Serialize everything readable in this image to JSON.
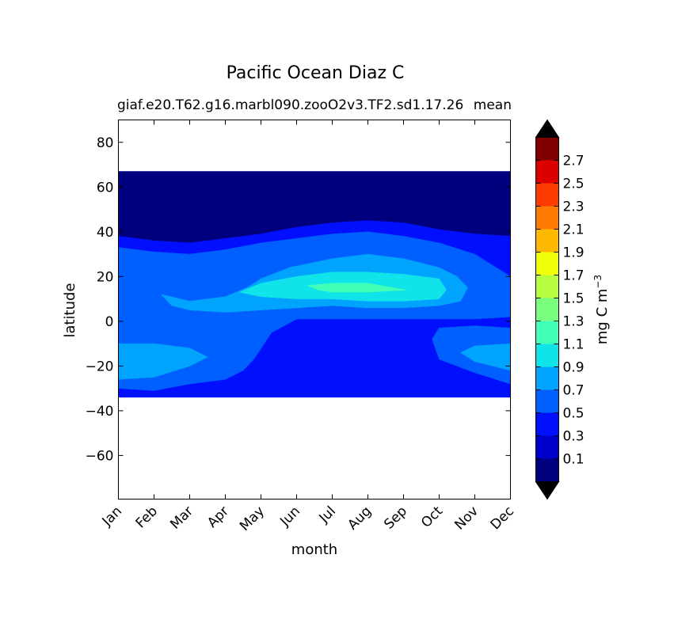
{
  "chart_data": {
    "type": "heatmap",
    "title": "Pacific Ocean Diaz C",
    "subtitle_left": "giaf.e20.T62.g16.marbl090.zooO2v3.TF2.sd1.17.26",
    "subtitle_right": "mean",
    "xlabel": "month",
    "ylabel": "latitude",
    "x_categories": [
      "Jan",
      "Feb",
      "Mar",
      "Apr",
      "May",
      "Jun",
      "Jul",
      "Aug",
      "Sep",
      "Oct",
      "Nov",
      "Dec"
    ],
    "y_ticks": [
      80,
      60,
      40,
      20,
      0,
      -20,
      -40,
      -60
    ],
    "y_tick_labels": [
      "80",
      "60",
      "40",
      "20",
      "0",
      "−20",
      "−40",
      "−60"
    ],
    "ylim": [
      -79.5,
      90
    ],
    "data_lat_range": [
      -34,
      67
    ],
    "colorbar": {
      "label": "mg C m",
      "label_superscript": "−3",
      "levels": [
        0,
        0.2,
        0.4,
        0.6,
        0.8,
        1.0,
        1.2,
        1.4,
        1.6,
        1.8,
        2.0,
        2.2,
        2.4,
        2.6,
        2.8
      ],
      "tick_labels": [
        "0.1",
        "0.3",
        "0.5",
        "0.7",
        "0.9",
        "1.1",
        "1.3",
        "1.5",
        "1.7",
        "1.9",
        "2.1",
        "2.3",
        "2.5",
        "2.7"
      ],
      "colors": [
        "#00007f",
        "#0000cc",
        "#0010ff",
        "#0060ff",
        "#00a4ff",
        "#10e4e8",
        "#40ffb7",
        "#79ff7d",
        "#b7ff40",
        "#efff08",
        "#ffb800",
        "#ff7a00",
        "#ff3b00",
        "#dd0000",
        "#800000"
      ],
      "under_color": "#000000",
      "over_color": "#000000",
      "extend": "both"
    },
    "contours": [
      {
        "level": "0.0-0.2",
        "color": "#00007f",
        "points": [
          [
            1,
            67
          ],
          [
            12,
            67
          ],
          [
            12,
            38
          ],
          [
            11,
            39
          ],
          [
            10,
            41
          ],
          [
            9,
            44
          ],
          [
            8,
            45
          ],
          [
            7,
            44
          ],
          [
            6,
            42
          ],
          [
            5,
            39
          ],
          [
            4,
            37
          ],
          [
            3,
            35
          ],
          [
            2,
            36
          ],
          [
            1,
            38
          ]
        ]
      },
      {
        "level": "0.2-0.4",
        "color": "#0010ff",
        "points": [
          [
            1,
            38
          ],
          [
            2,
            36
          ],
          [
            3,
            35
          ],
          [
            4,
            37
          ],
          [
            5,
            39
          ],
          [
            6,
            42
          ],
          [
            7,
            44
          ],
          [
            8,
            45
          ],
          [
            9,
            44
          ],
          [
            10,
            41
          ],
          [
            11,
            39
          ],
          [
            12,
            38
          ],
          [
            12,
            -34
          ],
          [
            1,
            -34
          ]
        ]
      },
      {
        "level": "0.4-0.6",
        "color": "#0060ff",
        "points": [
          [
            1,
            33
          ],
          [
            2,
            31
          ],
          [
            3,
            30
          ],
          [
            4,
            32
          ],
          [
            5,
            35
          ],
          [
            6,
            37
          ],
          [
            7,
            39
          ],
          [
            8,
            40
          ],
          [
            9,
            38
          ],
          [
            10,
            35
          ],
          [
            11,
            30
          ],
          [
            12,
            20
          ],
          [
            12,
            2
          ],
          [
            11,
            1
          ],
          [
            10,
            1
          ],
          [
            9,
            1
          ],
          [
            8,
            1
          ],
          [
            7,
            1
          ],
          [
            6,
            1
          ],
          [
            5.3,
            -5
          ],
          [
            4.8,
            -17
          ],
          [
            4.5,
            -22
          ],
          [
            4,
            -26
          ],
          [
            3,
            -28
          ],
          [
            2,
            -31
          ],
          [
            1,
            -30
          ]
        ]
      },
      {
        "level": "0.4-0.6 south-east",
        "color": "#0060ff",
        "points": [
          [
            10,
            -3
          ],
          [
            11,
            -2
          ],
          [
            12,
            -3
          ],
          [
            12,
            -28
          ],
          [
            11,
            -23
          ],
          [
            10,
            -17
          ],
          [
            9.8,
            -8
          ]
        ]
      },
      {
        "level": "0.6-0.8",
        "color": "#00a4ff",
        "points": [
          [
            2.2,
            12
          ],
          [
            3,
            9
          ],
          [
            4,
            11
          ],
          [
            4.6,
            15
          ],
          [
            5,
            19
          ],
          [
            5.8,
            24
          ],
          [
            7,
            28
          ],
          [
            8,
            30
          ],
          [
            9,
            28
          ],
          [
            10,
            24
          ],
          [
            10.5,
            20
          ],
          [
            10.8,
            15
          ],
          [
            10.6,
            9
          ],
          [
            10,
            7
          ],
          [
            9,
            6
          ],
          [
            8,
            6
          ],
          [
            7,
            7
          ],
          [
            6,
            6
          ],
          [
            5,
            5
          ],
          [
            4,
            4
          ],
          [
            3,
            5
          ],
          [
            2.5,
            7
          ]
        ]
      },
      {
        "level": "0.6-0.8 south-west",
        "color": "#00a4ff",
        "points": [
          [
            1,
            -10
          ],
          [
            2,
            -10
          ],
          [
            3,
            -12
          ],
          [
            3.5,
            -16
          ],
          [
            3,
            -20
          ],
          [
            2,
            -25
          ],
          [
            1,
            -26
          ]
        ]
      },
      {
        "level": "0.6-0.8 south-east",
        "color": "#00a4ff",
        "points": [
          [
            12,
            -10
          ],
          [
            11,
            -11
          ],
          [
            10.6,
            -14
          ],
          [
            11,
            -18
          ],
          [
            12,
            -22
          ]
        ]
      },
      {
        "level": "0.8-1.0",
        "color": "#10e4e8",
        "points": [
          [
            4.4,
            13
          ],
          [
            5,
            17
          ],
          [
            6,
            20
          ],
          [
            7,
            22
          ],
          [
            8,
            22
          ],
          [
            9,
            21
          ],
          [
            10,
            19
          ],
          [
            10.2,
            14
          ],
          [
            10,
            10
          ],
          [
            9,
            9
          ],
          [
            8,
            9
          ],
          [
            7,
            10
          ],
          [
            6,
            10
          ],
          [
            5,
            11
          ]
        ]
      },
      {
        "level": "1.0-1.2",
        "color": "#40ffb7",
        "points": [
          [
            6.3,
            16
          ],
          [
            7,
            17
          ],
          [
            8,
            17
          ],
          [
            8.7,
            15
          ],
          [
            9.1,
            14
          ],
          [
            8,
            13
          ],
          [
            7,
            13
          ],
          [
            6.6,
            14
          ]
        ]
      }
    ]
  }
}
